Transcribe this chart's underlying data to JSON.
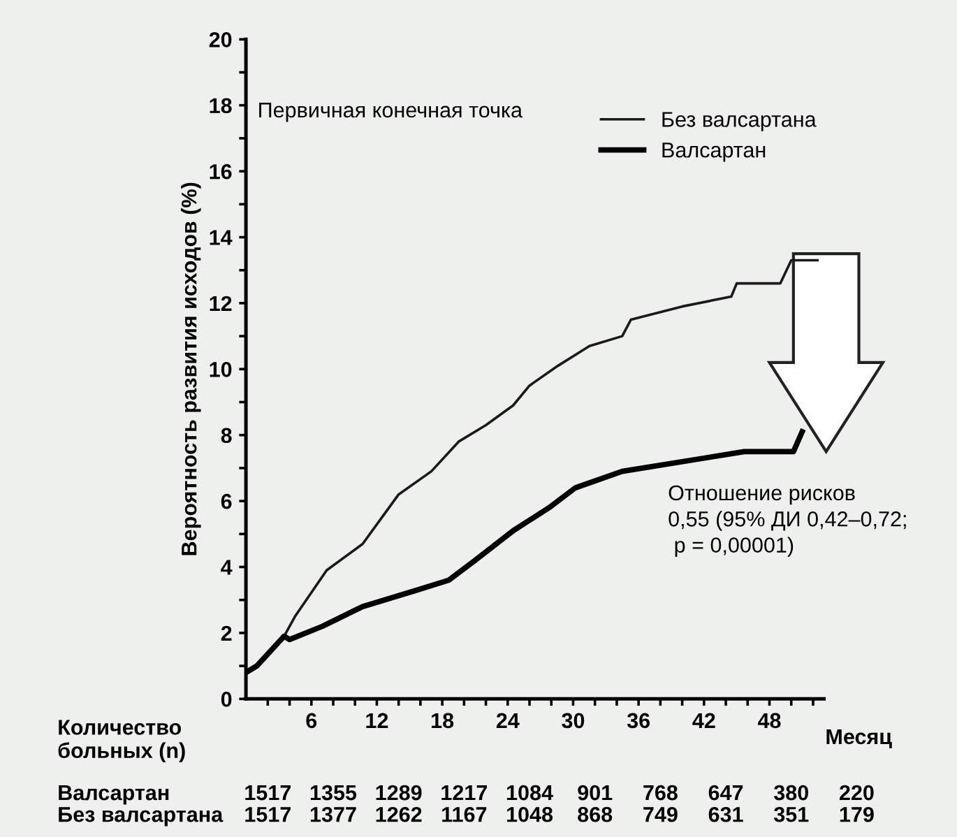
{
  "chart_data": {
    "type": "line",
    "xlabel": "Месяц",
    "ylabel": "Вероятность развития исходов (%)",
    "xlim": [
      0,
      53
    ],
    "ylim": [
      0,
      20
    ],
    "xticks": [
      {
        "value": 2,
        "label": null
      },
      {
        "value": 4,
        "label": null
      },
      6,
      {
        "value": 8,
        "label": null
      },
      {
        "value": 10,
        "label": null
      },
      12,
      {
        "value": 14,
        "label": null
      },
      {
        "value": 16,
        "label": null
      },
      18,
      {
        "value": 20,
        "label": null
      },
      {
        "value": 22,
        "label": null
      },
      24,
      {
        "value": 26,
        "label": null
      },
      {
        "value": 28,
        "label": null
      },
      30,
      {
        "value": 32,
        "label": null
      },
      {
        "value": 34,
        "label": null
      },
      36,
      {
        "value": 38,
        "label": null
      },
      {
        "value": 40,
        "label": null
      },
      42,
      {
        "value": 44,
        "label": null
      },
      {
        "value": 46,
        "label": null
      },
      48,
      {
        "value": 50,
        "label": null
      },
      {
        "value": 52,
        "label": null
      }
    ],
    "yticks": [
      0,
      {
        "value": 1,
        "label": null
      },
      2,
      {
        "value": 3,
        "label": null
      },
      4,
      {
        "value": 5,
        "label": null
      },
      6,
      {
        "value": 7,
        "label": null
      },
      8,
      {
        "value": 9,
        "label": null
      },
      10,
      {
        "value": 11,
        "label": null
      },
      12,
      {
        "value": 13,
        "label": null
      },
      14,
      {
        "value": 15,
        "label": null
      },
      16,
      {
        "value": 17,
        "label": null
      },
      18,
      {
        "value": 19,
        "label": null
      },
      20
    ],
    "grid": false,
    "legend": "top right",
    "marker": "none",
    "line_style": "solid",
    "series": [
      {
        "name": "Без валсартана",
        "color": "#1a1a1a",
        "x": [
          0,
          1,
          3.5,
          4.5,
          7.4,
          10.7,
          14,
          17,
          19.5,
          22,
          24.5,
          26,
          28.6,
          31.5,
          34.5,
          35.3,
          40,
          44.5,
          45,
          49,
          50,
          52.4
        ],
        "values": [
          0.8,
          1.0,
          1.9,
          2.5,
          3.9,
          4.7,
          6.2,
          6.9,
          7.8,
          8.3,
          8.9,
          9.5,
          10.1,
          10.7,
          11.0,
          11.5,
          11.9,
          12.2,
          12.6,
          12.6,
          13.3,
          13.3
        ]
      },
      {
        "name": "Валсартан",
        "color": "#000000",
        "x": [
          0,
          1,
          3.5,
          4,
          7,
          10.7,
          15.7,
          18.6,
          21,
          24.5,
          27.8,
          30.2,
          34.5,
          42,
          45.7,
          50.2,
          51
        ],
        "values": [
          0.8,
          1.0,
          1.9,
          1.8,
          2.2,
          2.8,
          3.3,
          3.6,
          4.2,
          5.1,
          5.8,
          6.4,
          6.9,
          7.3,
          7.5,
          7.5,
          8.1
        ]
      }
    ],
    "annotations": [
      "Первичная конечная точка",
      "Отношение рисков\n0,55 (95% ДИ 0,42–0,72;\n p = 0,00001)",
      "Количество\nбольных (n)",
      "1517 1355 1289 1217 1084 901 768 647 380 220",
      "1517 1377 1262 1167 1048 868 749 631 351 179"
    ]
  }
}
